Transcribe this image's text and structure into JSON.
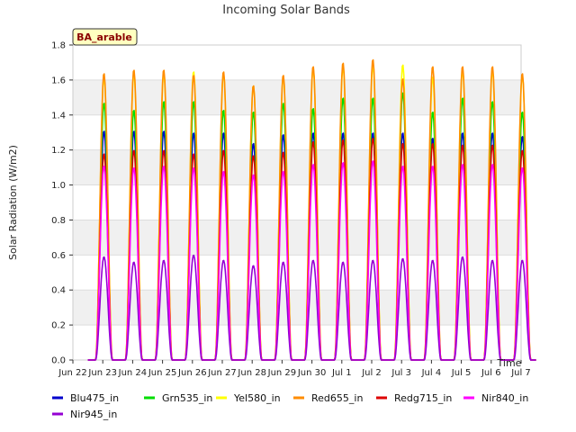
{
  "chart_data": {
    "type": "line",
    "title": "Incoming Solar Bands",
    "xlabel": "Time",
    "ylabel": "Solar Radiation (W/m2)",
    "site_label": "BA_arable",
    "ylim": [
      0.0,
      1.8
    ],
    "yticks": [
      "0.0",
      "0.2",
      "0.4",
      "0.6",
      "0.8",
      "1.0",
      "1.2",
      "1.4",
      "1.6",
      "1.8"
    ],
    "x_tick_labels": [
      "Jun 22",
      "Jun 23",
      "Jun 24",
      "Jun 25",
      "Jun 26",
      "Jun 27",
      "Jun 28",
      "Jun 29",
      "Jun 30",
      "Jul 1",
      "Jul 2",
      "Jul 3",
      "Jul 4",
      "Jul 5",
      "Jul 6",
      "Jul 7"
    ],
    "grid": "horizontal bands",
    "legend_position": "bottom",
    "days": [
      "Jun 22",
      "Jun 23",
      "Jun 24",
      "Jun 25",
      "Jun 26",
      "Jun 27",
      "Jun 28",
      "Jun 29",
      "Jun 30",
      "Jul 1",
      "Jul 2",
      "Jul 3",
      "Jul 4",
      "Jul 5",
      "Jul 6"
    ],
    "series": [
      {
        "name": "Blu475_in",
        "color": "#0000cc",
        "daily_peak": [
          1.31,
          1.31,
          1.31,
          1.3,
          1.3,
          1.24,
          1.29,
          1.3,
          1.3,
          1.3,
          1.3,
          1.27,
          1.3,
          1.3,
          1.28
        ]
      },
      {
        "name": "Grn535_in",
        "color": "#00dd00",
        "daily_peak": [
          1.47,
          1.43,
          1.48,
          1.48,
          1.43,
          1.42,
          1.47,
          1.44,
          1.5,
          1.5,
          1.53,
          1.42,
          1.5,
          1.48,
          1.42
        ]
      },
      {
        "name": "Yel580_in",
        "color": "#ffff00",
        "daily_peak": [
          1.62,
          1.64,
          1.64,
          1.65,
          1.64,
          1.57,
          1.62,
          1.67,
          1.68,
          1.69,
          1.69,
          1.62,
          1.66,
          1.66,
          1.63
        ]
      },
      {
        "name": "Red655_in",
        "color": "#ff8c00",
        "daily_peak": [
          1.64,
          1.66,
          1.66,
          1.63,
          1.65,
          1.57,
          1.63,
          1.68,
          1.7,
          1.72,
          1.61,
          1.68,
          1.68,
          1.68,
          1.64
        ]
      },
      {
        "name": "Redg715_in",
        "color": "#dd0000",
        "daily_peak": [
          1.18,
          1.2,
          1.2,
          1.18,
          1.2,
          1.17,
          1.19,
          1.25,
          1.26,
          1.27,
          1.24,
          1.24,
          1.23,
          1.23,
          1.2
        ]
      },
      {
        "name": "Nir840_in",
        "color": "#ff00ff",
        "daily_peak": [
          1.11,
          1.1,
          1.11,
          1.1,
          1.08,
          1.06,
          1.08,
          1.12,
          1.13,
          1.14,
          1.11,
          1.11,
          1.12,
          1.12,
          1.1
        ]
      },
      {
        "name": "Nir945_in",
        "color": "#9400d3",
        "daily_peak": [
          0.59,
          0.56,
          0.57,
          0.6,
          0.57,
          0.54,
          0.56,
          0.57,
          0.56,
          0.57,
          0.58,
          0.57,
          0.59,
          0.57,
          0.57
        ]
      }
    ]
  }
}
